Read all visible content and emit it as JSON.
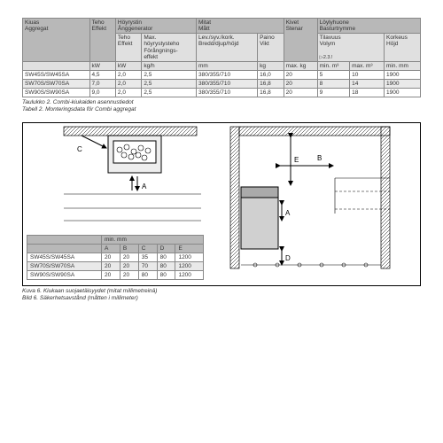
{
  "table1": {
    "header_top": {
      "c1": "Kiuas\nAggregat",
      "c2": "Teho\nEffekt",
      "c3": "Höyrystin\nÅnggenerator",
      "c4": "Mitat\nMått",
      "c5": "Kivet\nStenar",
      "c6": "Löylyhuone\nBasturtrymme"
    },
    "header_sub": {
      "c3a": "Teho\nEffekt",
      "c3b": "Max.\nhöyrystysteho\nFörångnings-\neffekt",
      "c4a": "Lev./syv./kork.\nBredd/djup/höjd",
      "c4b": "Paino\nVikt",
      "c6a": "Tilavuus\nVolym",
      "c6b": "Korkeus\nHöjd"
    },
    "units": {
      "c2": "kW",
      "c3a": "kW",
      "c3b": "kg/h",
      "c4a": "mm",
      "c4b": "kg",
      "c5": "max. kg",
      "c6a_note": "▷2.3.!",
      "c6a1": "min. m³",
      "c6a2": "max. m³",
      "c6b": "min. mm"
    },
    "rows": [
      {
        "m": "SW45S/SW45SA",
        "kw": "4,5",
        "skw": "2,0",
        "kgh": "2,5",
        "dim": "380/355/710",
        "kg": "16,0",
        "mk": "20",
        "min": "5",
        "max": "10",
        "mm": "1900"
      },
      {
        "m": "SW70S/SW70SA",
        "kw": "7,0",
        "skw": "2,0",
        "kgh": "2,5",
        "dim": "380/355/710",
        "kg": "16,8",
        "mk": "20",
        "min": "8",
        "max": "14",
        "mm": "1900"
      },
      {
        "m": "SW90S/SW90SA",
        "kw": "9,0",
        "skw": "2,0",
        "kgh": "2,5",
        "dim": "380/355/710",
        "kg": "16,8",
        "mk": "20",
        "min": "9",
        "max": "18",
        "mm": "1900"
      }
    ]
  },
  "caption1": {
    "l1": "Taulukko 2. Combi-kiukaiden asennustiedot",
    "l2": "Tabell 2.     Monteringsdata för Combi aggregat"
  },
  "table2": {
    "header": "min. mm",
    "cols": [
      "A",
      "B",
      "C",
      "D",
      "E"
    ],
    "rows": [
      {
        "m": "SW45S/SW45SA",
        "v": [
          "20",
          "20",
          "35",
          "80",
          "1200"
        ]
      },
      {
        "m": "SW70S/SW70SA",
        "v": [
          "20",
          "20",
          "70",
          "80",
          "1200"
        ]
      },
      {
        "m": "SW90S/SW90SA",
        "v": [
          "20",
          "20",
          "80",
          "80",
          "1200"
        ]
      }
    ]
  },
  "caption2": {
    "l1": "Kuva 6.    Kiukaan suojaetäisyydet (mitat millimetreinä)",
    "l2": "Bild 6.     Säkerhetsavstånd (måtten i millimeter)"
  },
  "diagram_labels": {
    "A": "A",
    "B": "B",
    "C": "C",
    "D": "D",
    "E": "E"
  }
}
